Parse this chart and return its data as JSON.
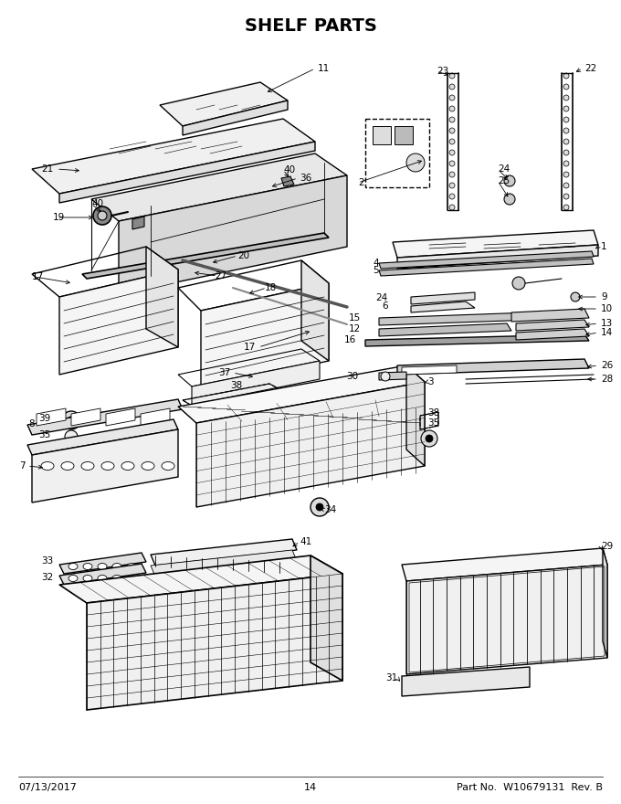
{
  "title": "SHELF PARTS",
  "title_fontsize": 14,
  "title_fontweight": "bold",
  "footer_left": "07/13/2017",
  "footer_center": "14",
  "footer_right": "Part No.  W10679131  Rev. B",
  "footer_fontsize": 8,
  "bg_color": "#ffffff",
  "line_color": "#000000",
  "fig_width": 6.8,
  "fig_height": 8.8,
  "dpi": 100
}
